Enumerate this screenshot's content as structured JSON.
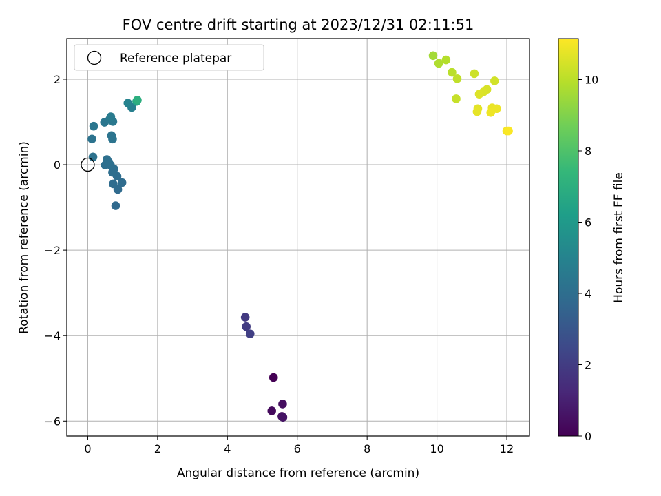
{
  "chart_data": {
    "type": "scatter",
    "title": "FOV centre drift starting at 2023/12/31 02:11:51",
    "xlabel": "Angular distance from reference (arcmin)",
    "ylabel": "Rotation from reference (arcmin)",
    "xlim": [
      -0.6,
      12.65
    ],
    "ylim": [
      -6.35,
      2.95
    ],
    "x_ticks": [
      0,
      2,
      4,
      6,
      8,
      10,
      12
    ],
    "y_ticks": [
      -6,
      -4,
      -2,
      0,
      2
    ],
    "grid": true,
    "legend": {
      "position": "top-left",
      "entries": [
        "Reference platepar"
      ]
    },
    "reference": {
      "label": "Reference platepar",
      "x": 0,
      "y": 0
    },
    "colorbar": {
      "label": "Hours from first FF file",
      "range": [
        0,
        11.15
      ],
      "ticks": [
        0,
        2,
        4,
        6,
        8,
        10
      ],
      "colormap": "viridis"
    },
    "points": [
      {
        "x": 5.32,
        "y": -4.98,
        "c": 0.0
      },
      {
        "x": 5.27,
        "y": -5.76,
        "c": 0.3
      },
      {
        "x": 5.58,
        "y": -5.6,
        "c": 0.4
      },
      {
        "x": 5.56,
        "y": -5.89,
        "c": 0.5
      },
      {
        "x": 5.59,
        "y": -5.91,
        "c": 0.6
      },
      {
        "x": 4.51,
        "y": -3.57,
        "c": 1.9
      },
      {
        "x": 4.54,
        "y": -3.79,
        "c": 2.0
      },
      {
        "x": 4.65,
        "y": -3.96,
        "c": 2.1
      },
      {
        "x": 0.8,
        "y": -0.96,
        "c": 3.8
      },
      {
        "x": 0.86,
        "y": -0.58,
        "c": 3.85
      },
      {
        "x": 0.73,
        "y": -0.45,
        "c": 3.9
      },
      {
        "x": 0.98,
        "y": -0.42,
        "c": 3.9
      },
      {
        "x": 0.84,
        "y": -0.27,
        "c": 3.95
      },
      {
        "x": 0.71,
        "y": -0.18,
        "c": 4.0
      },
      {
        "x": 0.75,
        "y": -0.1,
        "c": 4.0
      },
      {
        "x": 0.65,
        "y": -0.01,
        "c": 4.05
      },
      {
        "x": 0.5,
        "y": -0.01,
        "c": 4.05
      },
      {
        "x": 0.6,
        "y": 0.06,
        "c": 4.1
      },
      {
        "x": 0.55,
        "y": 0.12,
        "c": 4.1
      },
      {
        "x": 0.15,
        "y": 0.18,
        "c": 4.2
      },
      {
        "x": 0.12,
        "y": 0.6,
        "c": 4.25
      },
      {
        "x": 0.71,
        "y": 0.6,
        "c": 4.3
      },
      {
        "x": 0.68,
        "y": 0.68,
        "c": 4.3
      },
      {
        "x": 0.17,
        "y": 0.9,
        "c": 4.4
      },
      {
        "x": 0.48,
        "y": 0.99,
        "c": 4.4
      },
      {
        "x": 0.72,
        "y": 1.01,
        "c": 4.5
      },
      {
        "x": 0.63,
        "y": 1.06,
        "c": 4.5
      },
      {
        "x": 0.66,
        "y": 1.12,
        "c": 4.6
      },
      {
        "x": 1.26,
        "y": 1.34,
        "c": 4.8
      },
      {
        "x": 1.15,
        "y": 1.44,
        "c": 5.0
      },
      {
        "x": 1.4,
        "y": 1.48,
        "c": 6.5
      },
      {
        "x": 1.42,
        "y": 1.51,
        "c": 7.0
      },
      {
        "x": 9.89,
        "y": 2.55,
        "c": 9.6
      },
      {
        "x": 10.05,
        "y": 2.37,
        "c": 9.8
      },
      {
        "x": 10.26,
        "y": 2.45,
        "c": 9.9
      },
      {
        "x": 10.43,
        "y": 2.16,
        "c": 10.0
      },
      {
        "x": 10.58,
        "y": 2.01,
        "c": 10.1
      },
      {
        "x": 10.55,
        "y": 1.54,
        "c": 10.2
      },
      {
        "x": 11.07,
        "y": 2.13,
        "c": 10.3
      },
      {
        "x": 11.65,
        "y": 1.96,
        "c": 10.4
      },
      {
        "x": 11.43,
        "y": 1.76,
        "c": 10.5
      },
      {
        "x": 11.33,
        "y": 1.7,
        "c": 10.55
      },
      {
        "x": 11.21,
        "y": 1.65,
        "c": 10.6
      },
      {
        "x": 11.17,
        "y": 1.31,
        "c": 10.7
      },
      {
        "x": 11.15,
        "y": 1.24,
        "c": 10.75
      },
      {
        "x": 11.58,
        "y": 1.33,
        "c": 10.8
      },
      {
        "x": 11.71,
        "y": 1.31,
        "c": 10.85
      },
      {
        "x": 11.54,
        "y": 1.22,
        "c": 10.9
      },
      {
        "x": 12.0,
        "y": 0.79,
        "c": 11.0
      },
      {
        "x": 12.05,
        "y": 0.79,
        "c": 11.1
      }
    ]
  }
}
